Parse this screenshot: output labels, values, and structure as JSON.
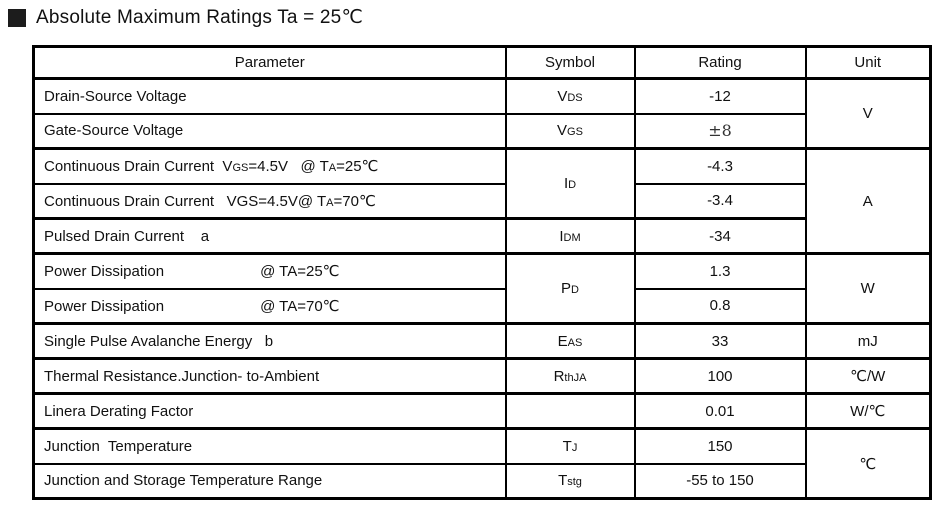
{
  "title": {
    "bullet": "black-square",
    "text": "Absolute Maximum Ratings Ta = 25℃"
  },
  "colors": {
    "text": "#111111",
    "border": "#000000",
    "background": "#ffffff"
  },
  "table": {
    "headers": [
      "Parameter",
      "Symbol",
      "Rating",
      "Unit"
    ],
    "rows": [
      {
        "group_start": false,
        "parameter": {
          "segs": [
            {
              "t": "Drain-Source Voltage"
            }
          ]
        },
        "symbol": {
          "segs": [
            {
              "t": "V"
            },
            {
              "t": "DS",
              "sub": true
            }
          ]
        },
        "rating": {
          "segs": [
            {
              "t": "-12"
            }
          ]
        },
        "unit": {
          "rowspan": 2,
          "segs": [
            {
              "t": "V"
            }
          ]
        }
      },
      {
        "group_start": false,
        "parameter": {
          "segs": [
            {
              "t": "Gate-Source Voltage"
            }
          ]
        },
        "symbol": {
          "segs": [
            {
              "t": "V"
            },
            {
              "t": "GS",
              "sub": true
            }
          ]
        },
        "rating": {
          "segs": [
            {
              "t": "±8",
              "serif": true
            }
          ]
        },
        "unit": null
      },
      {
        "group_start": true,
        "parameter": {
          "segs": [
            {
              "t": "Continuous Drain Current  V"
            },
            {
              "t": "GS",
              "sub": true
            },
            {
              "t": "=4.5V   @ T"
            },
            {
              "t": "A",
              "sub": true
            },
            {
              "t": "=25℃"
            }
          ]
        },
        "symbol": {
          "rowspan": 2,
          "segs": [
            {
              "t": "I"
            },
            {
              "t": "D",
              "sub": true
            }
          ]
        },
        "rating": {
          "segs": [
            {
              "t": "-4.3"
            }
          ]
        },
        "unit": {
          "rowspan": 3,
          "segs": [
            {
              "t": "A"
            }
          ]
        }
      },
      {
        "group_start": false,
        "parameter": {
          "segs": [
            {
              "t": "Continuous Drain Current   VGS=4.5V@ T"
            },
            {
              "t": "A",
              "sub": true
            },
            {
              "t": "=70℃"
            }
          ]
        },
        "symbol": null,
        "rating": {
          "segs": [
            {
              "t": "-3.4"
            }
          ]
        },
        "unit": null
      },
      {
        "group_start": true,
        "parameter": {
          "segs": [
            {
              "t": "Pulsed Drain Current    a"
            }
          ]
        },
        "symbol": {
          "segs": [
            {
              "t": "I"
            },
            {
              "t": "DM",
              "sub": true
            }
          ]
        },
        "rating": {
          "segs": [
            {
              "t": "-34"
            }
          ]
        },
        "unit": null
      },
      {
        "group_start": true,
        "parameter": {
          "segs": [
            {
              "t": "Power Dissipation"
            },
            {
              "t": "@ TA=25℃",
              "gap": 96
            }
          ]
        },
        "symbol": {
          "rowspan": 2,
          "segs": [
            {
              "t": "P"
            },
            {
              "t": "D",
              "sub": true
            }
          ]
        },
        "rating": {
          "segs": [
            {
              "t": "1.3"
            }
          ]
        },
        "unit": {
          "rowspan": 2,
          "segs": [
            {
              "t": "W"
            }
          ]
        }
      },
      {
        "group_start": false,
        "parameter": {
          "segs": [
            {
              "t": "Power Dissipation"
            },
            {
              "t": "@ TA=70℃",
              "gap": 96
            }
          ]
        },
        "symbol": null,
        "rating": {
          "segs": [
            {
              "t": "0.8"
            }
          ]
        },
        "unit": null
      },
      {
        "group_start": true,
        "parameter": {
          "segs": [
            {
              "t": "Single Pulse Avalanche Energy   b"
            }
          ]
        },
        "symbol": {
          "segs": [
            {
              "t": "E"
            },
            {
              "t": "AS",
              "sub": true
            }
          ]
        },
        "rating": {
          "segs": [
            {
              "t": "33"
            }
          ]
        },
        "unit": {
          "segs": [
            {
              "t": "mJ"
            }
          ]
        }
      },
      {
        "group_start": true,
        "parameter": {
          "segs": [
            {
              "t": "Thermal Resistance.Junction- to-Ambient"
            }
          ]
        },
        "symbol": {
          "segs": [
            {
              "t": "R"
            },
            {
              "t": "thJA",
              "sub": true
            }
          ]
        },
        "rating": {
          "segs": [
            {
              "t": "100"
            }
          ]
        },
        "unit": {
          "segs": [
            {
              "t": "℃/W"
            }
          ]
        }
      },
      {
        "group_start": true,
        "parameter": {
          "segs": [
            {
              "t": "Linera Derating Factor"
            }
          ]
        },
        "symbol": {
          "segs": []
        },
        "rating": {
          "segs": [
            {
              "t": "0.01"
            }
          ]
        },
        "unit": {
          "segs": [
            {
              "t": "W/℃"
            }
          ]
        }
      },
      {
        "group_start": true,
        "parameter": {
          "segs": [
            {
              "t": "Junction  Temperature"
            }
          ]
        },
        "symbol": {
          "segs": [
            {
              "t": "T"
            },
            {
              "t": "J",
              "sub": true
            }
          ]
        },
        "rating": {
          "segs": [
            {
              "t": "150"
            }
          ]
        },
        "unit": {
          "rowspan": 2,
          "segs": [
            {
              "t": "℃"
            }
          ]
        }
      },
      {
        "group_start": false,
        "parameter": {
          "segs": [
            {
              "t": "Junction and Storage Temperature Range"
            }
          ]
        },
        "symbol": {
          "segs": [
            {
              "t": "T"
            },
            {
              "t": "stg",
              "sub": true
            }
          ]
        },
        "rating": {
          "segs": [
            {
              "t": "-55 to 150"
            }
          ]
        },
        "unit": null
      }
    ]
  }
}
